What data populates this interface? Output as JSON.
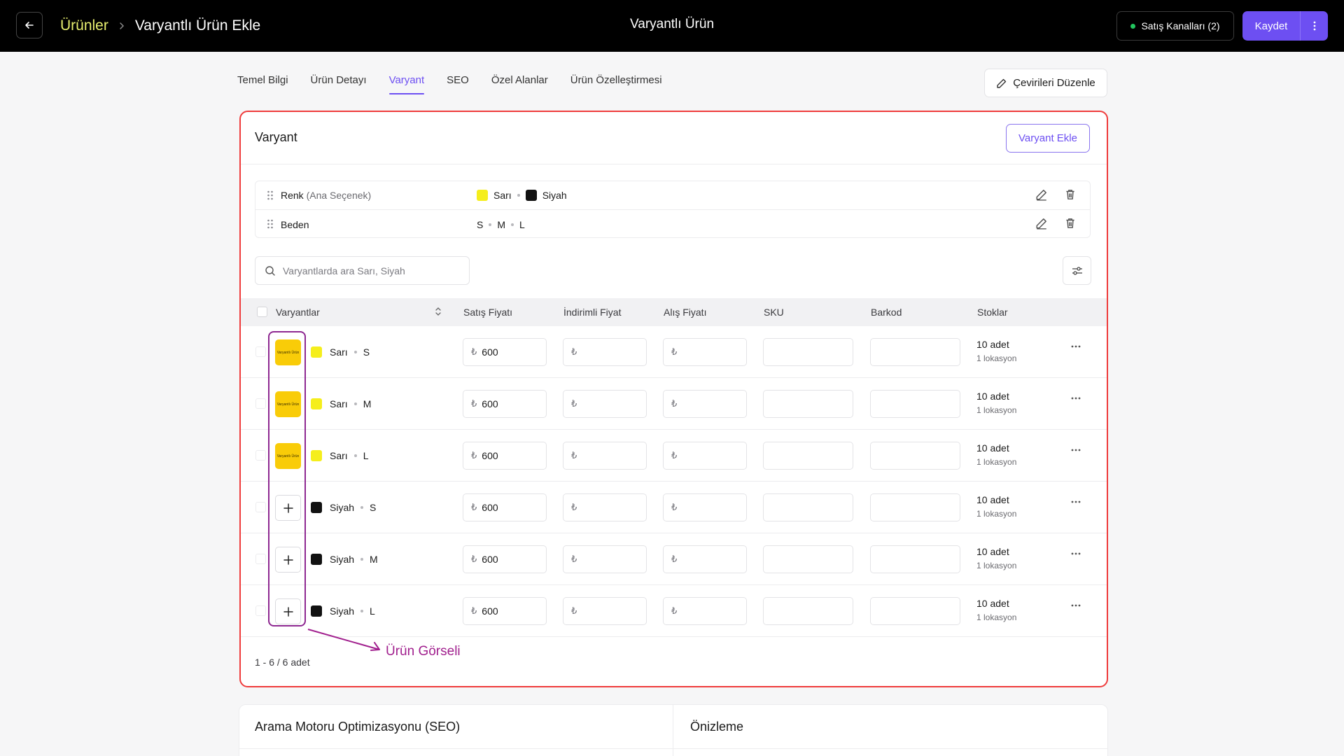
{
  "header": {
    "breadcrumb_parent": "Ürünler",
    "breadcrumb_current": "Varyantlı Ürün Ekle",
    "center_title": "Varyantlı Ürün",
    "channels_label": "Satış Kanalları (2)",
    "save_label": "Kaydet"
  },
  "tabs": [
    {
      "label": "Temel Bilgi",
      "active": false
    },
    {
      "label": "Ürün Detayı",
      "active": false
    },
    {
      "label": "Varyant",
      "active": true
    },
    {
      "label": "SEO",
      "active": false
    },
    {
      "label": "Özel Alanlar",
      "active": false
    },
    {
      "label": "Ürün Özelleştirmesi",
      "active": false
    }
  ],
  "translate_label": "Çevirileri Düzenle",
  "variant": {
    "title": "Varyant",
    "add_button": "Varyant Ekle",
    "options": [
      {
        "name": "Renk",
        "sub": "(Ana Seçenek)",
        "values": [
          {
            "label": "Sarı",
            "color": "#f5ee1c"
          },
          {
            "label": "Siyah",
            "color": "#111111"
          }
        ]
      },
      {
        "name": "Beden",
        "sub": "",
        "values": [
          {
            "label": "S"
          },
          {
            "label": "M"
          },
          {
            "label": "L"
          }
        ]
      }
    ],
    "search_placeholder": "Varyantlarda ara Sarı, Siyah",
    "columns": [
      "Varyantlar",
      "Satış Fiyatı",
      "İndirimli Fiyat",
      "Alış Fiyatı",
      "SKU",
      "Barkod",
      "Stoklar"
    ],
    "currency_symbol": "₺",
    "thumb_text": "Varyantlı Ürün",
    "rows": [
      {
        "color": "Sarı",
        "size": "S",
        "swatch": "#f5ee1c",
        "has_image": true,
        "price": "600",
        "stock": "10 adet",
        "location": "1 lokasyon"
      },
      {
        "color": "Sarı",
        "size": "M",
        "swatch": "#f5ee1c",
        "has_image": true,
        "price": "600",
        "stock": "10 adet",
        "location": "1 lokasyon"
      },
      {
        "color": "Sarı",
        "size": "L",
        "swatch": "#f5ee1c",
        "has_image": true,
        "price": "600",
        "stock": "10 adet",
        "location": "1 lokasyon"
      },
      {
        "color": "Siyah",
        "size": "S",
        "swatch": "#111111",
        "has_image": false,
        "price": "600",
        "stock": "10 adet",
        "location": "1 lokasyon"
      },
      {
        "color": "Siyah",
        "size": "M",
        "swatch": "#111111",
        "has_image": false,
        "price": "600",
        "stock": "10 adet",
        "location": "1 lokasyon"
      },
      {
        "color": "Siyah",
        "size": "L",
        "swatch": "#111111",
        "has_image": false,
        "price": "600",
        "stock": "10 adet",
        "location": "1 lokasyon"
      }
    ],
    "pagination": "1 - 6 / 6 adet"
  },
  "annotation": {
    "label": "Ürün Görseli",
    "color": "#a1208e"
  },
  "seo": {
    "title": "Arama Motoru Optimizasyonu (SEO)",
    "preview_title": "Önizleme"
  },
  "colors": {
    "accent": "#6d4ff2",
    "breadcrumb": "#e9f06f",
    "highlight_border": "#ef3b3b"
  }
}
